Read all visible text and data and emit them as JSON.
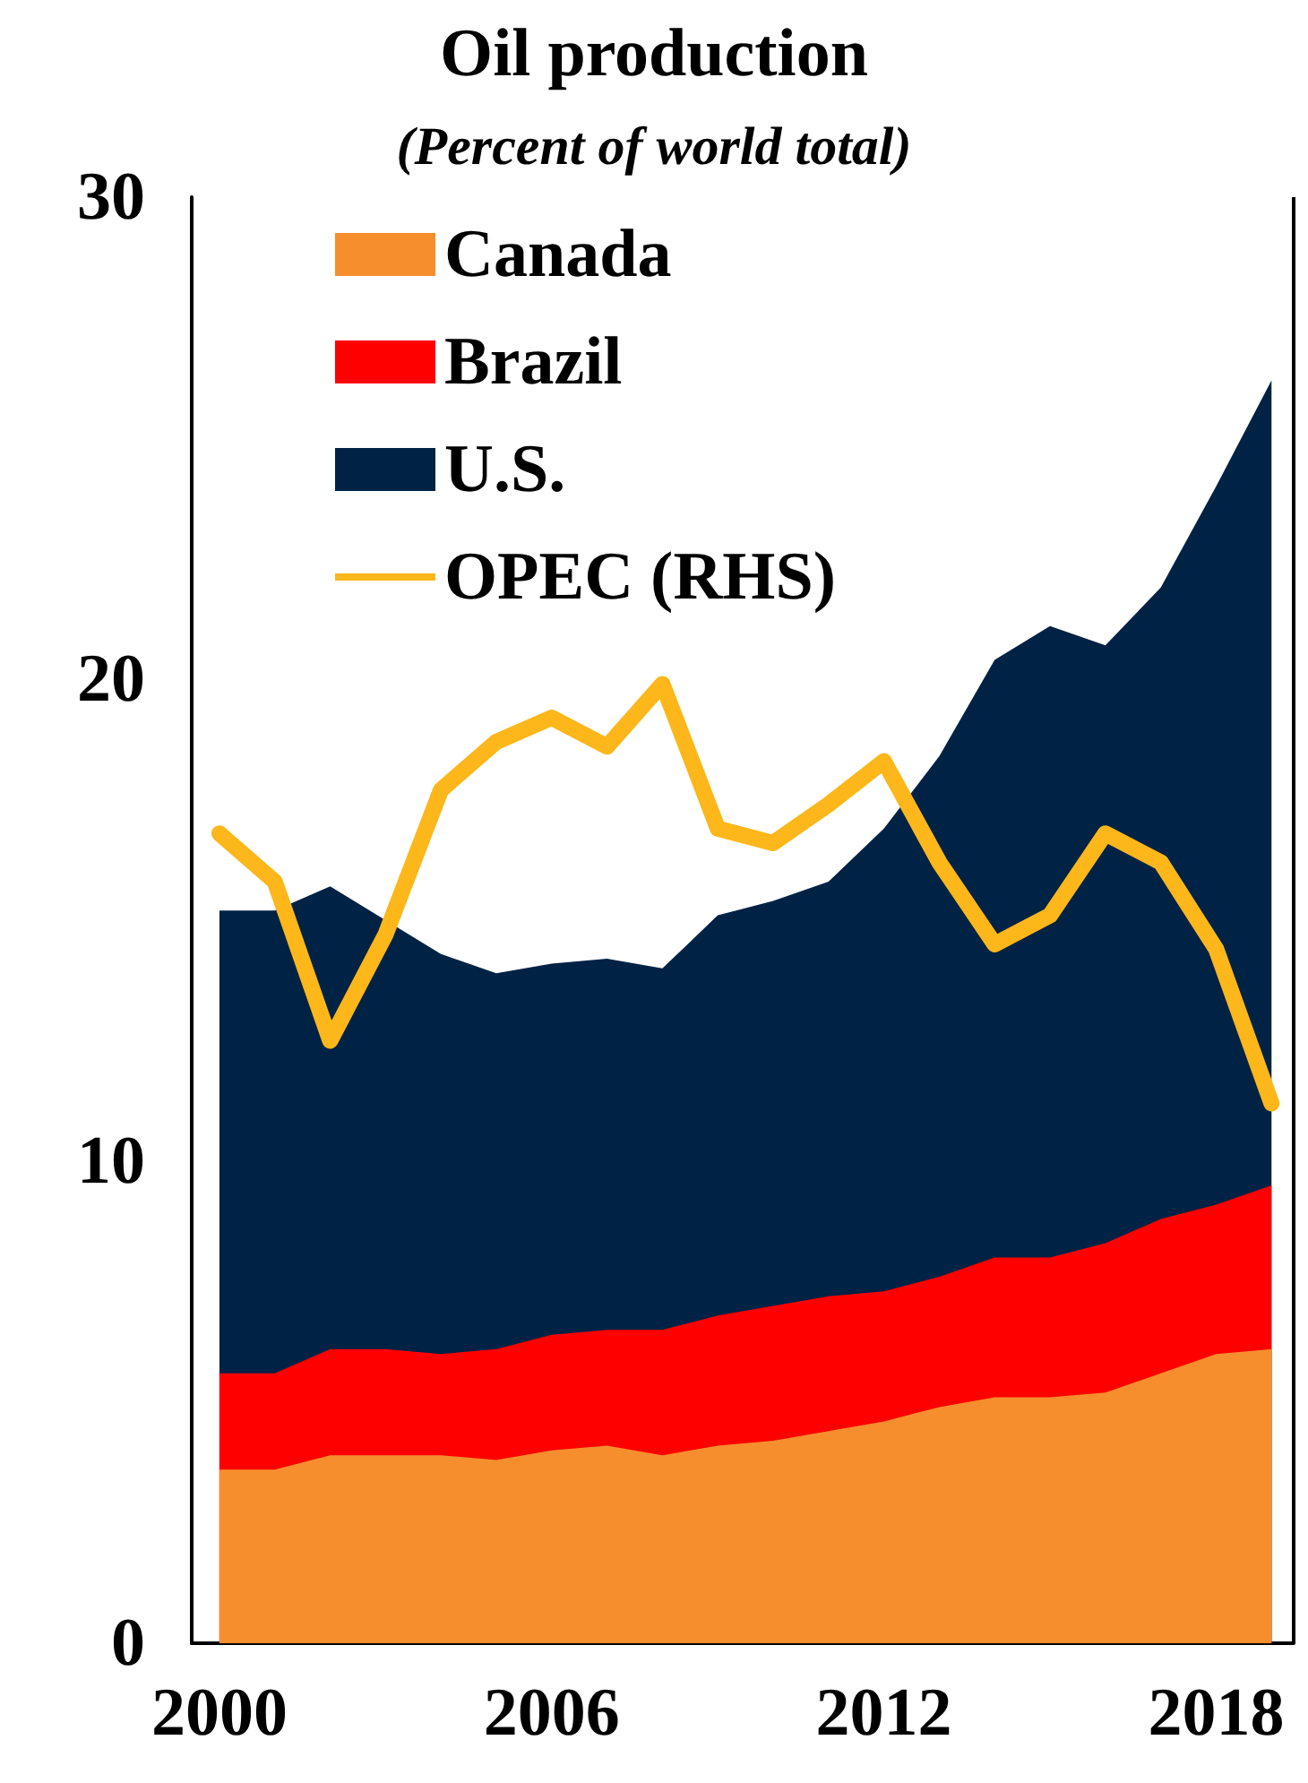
{
  "chart_data": {
    "type": "area",
    "title": "Oil production",
    "subtitle": "(Percent of world total)",
    "stacked": true,
    "x": [
      2000,
      2001,
      2002,
      2003,
      2004,
      2005,
      2006,
      2007,
      2008,
      2009,
      2010,
      2011,
      2012,
      2013,
      2014,
      2015,
      2016,
      2017,
      2018,
      2019
    ],
    "series": [
      {
        "name": "Canada",
        "color": "#f68e2e",
        "values": [
          3.6,
          3.6,
          3.9,
          3.9,
          3.9,
          3.8,
          4.0,
          4.1,
          3.9,
          4.1,
          4.2,
          4.4,
          4.6,
          4.9,
          5.1,
          5.1,
          5.2,
          5.6,
          6.0,
          6.1
        ]
      },
      {
        "name": "Brazil",
        "color": "#fe0000",
        "values": [
          2.0,
          2.0,
          2.2,
          2.2,
          2.1,
          2.3,
          2.4,
          2.4,
          2.6,
          2.7,
          2.8,
          2.8,
          2.7,
          2.7,
          2.9,
          2.9,
          3.1,
          3.2,
          3.1,
          3.4
        ]
      },
      {
        "name": "U.S.",
        "color": "#002244",
        "values": [
          9.6,
          9.6,
          9.6,
          8.9,
          8.3,
          7.8,
          7.7,
          7.7,
          7.5,
          8.3,
          8.4,
          8.6,
          9.6,
          10.8,
          12.4,
          13.1,
          12.4,
          13.1,
          14.9,
          16.7
        ]
      },
      {
        "name": "OPEC (RHS)",
        "type": "line",
        "color": "#fdb71a",
        "values": [
          16.8,
          15.8,
          12.5,
          14.7,
          17.7,
          18.7,
          19.2,
          18.6,
          19.9,
          16.9,
          16.6,
          17.4,
          18.3,
          16.2,
          14.5,
          15.1,
          16.8,
          16.2,
          14.4,
          11.2
        ]
      }
    ],
    "xlim": [
      1999.5,
      2019.4
    ],
    "xticks": [
      2000,
      2006,
      2012,
      2018
    ],
    "ylim": [
      0,
      30
    ],
    "yticks": [
      0,
      10,
      20,
      30
    ],
    "grid": false,
    "legend": "top left",
    "line_style": "solid"
  }
}
